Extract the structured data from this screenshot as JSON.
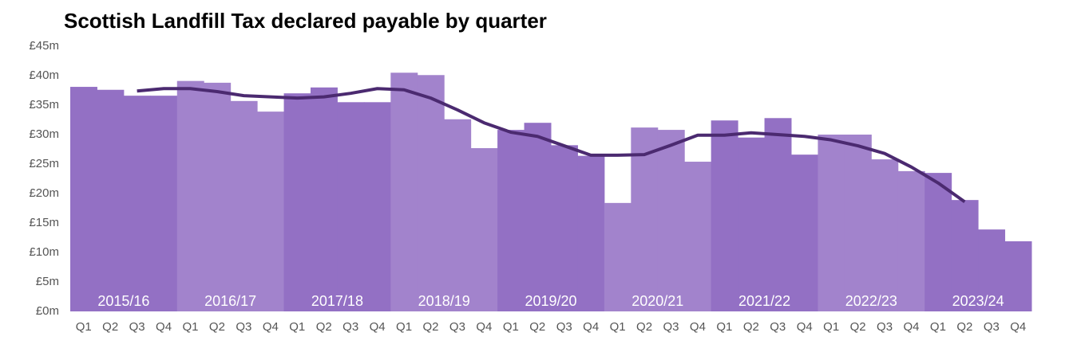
{
  "chart_data": {
    "type": "bar",
    "title": "Scottish Landfill Tax declared payable by quarter",
    "categories": [
      "Q1",
      "Q2",
      "Q3",
      "Q4",
      "Q1",
      "Q2",
      "Q3",
      "Q4",
      "Q1",
      "Q2",
      "Q3",
      "Q4",
      "Q1",
      "Q2",
      "Q3",
      "Q4",
      "Q1",
      "Q2",
      "Q3",
      "Q4",
      "Q1",
      "Q2",
      "Q3",
      "Q4",
      "Q1",
      "Q2",
      "Q3",
      "Q4",
      "Q1",
      "Q2",
      "Q3",
      "Q4",
      "Q1",
      "Q2",
      "Q3",
      "Q4"
    ],
    "groups": [
      "2015/16",
      "2016/17",
      "2017/18",
      "2018/19",
      "2019/20",
      "2020/21",
      "2021/22",
      "2022/23",
      "2023/24"
    ],
    "group_colors": [
      "#9370c4",
      "#a283cc"
    ],
    "series": [
      {
        "type": "bar",
        "values": [
          38.1,
          37.6,
          36.6,
          36.6,
          39.1,
          38.8,
          35.7,
          33.9,
          37.0,
          38.0,
          35.5,
          35.5,
          40.5,
          40.1,
          32.6,
          27.7,
          30.8,
          32.0,
          28.2,
          26.4,
          18.4,
          31.2,
          30.8,
          25.4,
          32.4,
          29.5,
          32.8,
          26.6,
          30.0,
          30.0,
          25.8,
          23.8,
          23.5,
          18.9,
          13.9,
          11.9
        ]
      },
      {
        "type": "line",
        "color": "#4b2a70",
        "values": [
          null,
          null,
          37.4,
          37.8,
          37.8,
          37.3,
          36.6,
          36.4,
          36.2,
          36.4,
          37.0,
          37.8,
          37.6,
          36.2,
          34.2,
          32.0,
          30.4,
          29.7,
          28.1,
          26.5,
          26.5,
          26.6,
          28.2,
          29.9,
          29.9,
          30.3,
          30.0,
          29.7,
          29.1,
          28.1,
          26.8,
          24.5,
          21.8,
          18.6,
          null,
          null
        ]
      }
    ],
    "ylim": [
      0,
      45
    ],
    "yticks": [
      {
        "value": 0,
        "label": "£0m"
      },
      {
        "value": 5,
        "label": "£5m"
      },
      {
        "value": 10,
        "label": "£10m"
      },
      {
        "value": 15,
        "label": "£15m"
      },
      {
        "value": 20,
        "label": "£20m"
      },
      {
        "value": 25,
        "label": "£25m"
      },
      {
        "value": 30,
        "label": "£30m"
      },
      {
        "value": 35,
        "label": "£35m"
      },
      {
        "value": 40,
        "label": "£40m"
      },
      {
        "value": 45,
        "label": "£45m"
      }
    ],
    "grid": false
  }
}
